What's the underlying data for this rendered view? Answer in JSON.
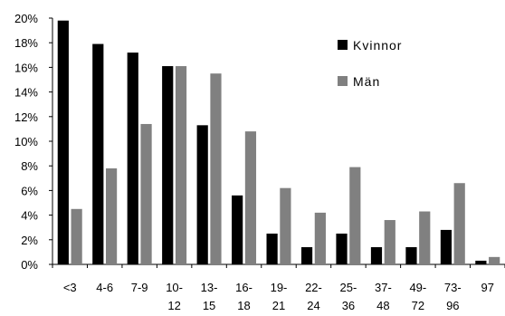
{
  "chart_data": {
    "type": "bar",
    "categories": [
      [
        "<3"
      ],
      [
        "4-6"
      ],
      [
        "7-9"
      ],
      [
        "10-",
        "12"
      ],
      [
        "13-",
        "15"
      ],
      [
        "16-",
        "18"
      ],
      [
        "19-",
        "21"
      ],
      [
        "22-",
        "24"
      ],
      [
        "25-",
        "36"
      ],
      [
        "37-",
        "48"
      ],
      [
        "49-",
        "72"
      ],
      [
        "73-",
        "96"
      ],
      [
        "97"
      ]
    ],
    "series": [
      {
        "name": "Kvinnor",
        "color": "#000000",
        "values": [
          19.8,
          17.9,
          17.2,
          16.1,
          11.3,
          5.6,
          2.5,
          1.4,
          2.5,
          1.4,
          1.4,
          2.8,
          0.3
        ]
      },
      {
        "name": "Män",
        "color": "#808080",
        "values": [
          4.5,
          7.8,
          11.4,
          16.1,
          15.5,
          10.8,
          6.2,
          4.2,
          7.9,
          3.6,
          4.3,
          6.6,
          0.6
        ]
      }
    ],
    "y_ticks": [
      "0%",
      "2%",
      "4%",
      "6%",
      "8%",
      "10%",
      "12%",
      "14%",
      "16%",
      "18%",
      "20%"
    ],
    "ylim": [
      0,
      20
    ],
    "legend_position": "top-right",
    "grid": false
  }
}
